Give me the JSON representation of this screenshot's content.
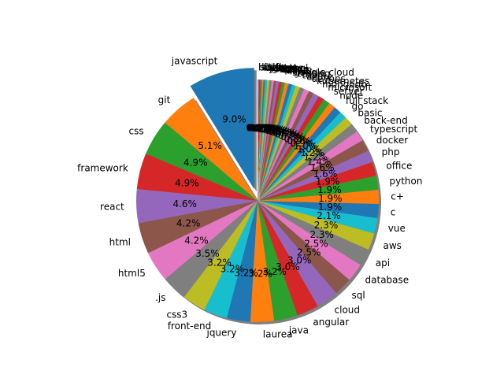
{
  "chart_data": {
    "type": "pie",
    "title": "",
    "start_angle_deg": 90,
    "counterclock": true,
    "shadow": true,
    "explode": {
      "index": 0,
      "amount": 0.1
    },
    "slices": [
      {
        "label": "javascript",
        "value": 9.0,
        "pct": "9.0%"
      },
      {
        "label": "git",
        "value": 5.1,
        "pct": "5.1%"
      },
      {
        "label": "css",
        "value": 4.9,
        "pct": "4.9%"
      },
      {
        "label": "framework",
        "value": 4.9,
        "pct": "4.9%"
      },
      {
        "label": "react",
        "value": 4.6,
        "pct": "4.6%"
      },
      {
        "label": "html",
        "value": 4.2,
        "pct": "4.2%"
      },
      {
        "label": "html5",
        "value": 4.2,
        "pct": "4.2%"
      },
      {
        "label": ".js",
        "value": 3.5,
        "pct": "3.5%"
      },
      {
        "label": "css3",
        "value": 3.2,
        "pct": "3.2%"
      },
      {
        "label": "front-end",
        "value": 3.2,
        "pct": "3.2%"
      },
      {
        "label": "jquery",
        "value": 3.2,
        "pct": "3.2%"
      },
      {
        "label": "laurea",
        "value": 3.2,
        "pct": "3.2%"
      },
      {
        "label": "java",
        "value": 3.2,
        "pct": "3.2%"
      },
      {
        "label": "angular",
        "value": 3.0,
        "pct": "3.0%"
      },
      {
        "label": "cloud",
        "value": 3.0,
        "pct": "3.0%"
      },
      {
        "label": "sql",
        "value": 2.5,
        "pct": "2.5%"
      },
      {
        "label": "database",
        "value": 2.5,
        "pct": "2.5%"
      },
      {
        "label": "api",
        "value": 2.3,
        "pct": "2.3%"
      },
      {
        "label": "aws",
        "value": 2.3,
        "pct": "2.3%"
      },
      {
        "label": "vue",
        "value": 2.1,
        "pct": "2.1%"
      },
      {
        "label": "c",
        "value": 1.9,
        "pct": "1.9%"
      },
      {
        "label": "c+",
        "value": 1.9,
        "pct": "1.9%"
      },
      {
        "label": "python",
        "value": 1.9,
        "pct": "1.9%"
      },
      {
        "label": "office",
        "value": 1.9,
        "pct": "1.9%"
      },
      {
        "label": "php",
        "value": 1.6,
        "pct": "1.6%"
      },
      {
        "label": "docker",
        "value": 1.6,
        "pct": "1.6%"
      },
      {
        "label": "typescript",
        "value": 1.4,
        "pct": "1.4%"
      },
      {
        "label": "back-end",
        "value": 1.2,
        "pct": "1.2%"
      },
      {
        "label": "basic",
        "value": 1.2,
        "pct": "1.2%"
      },
      {
        "label": "go",
        "value": 1.0,
        "pct": "1.0%"
      },
      {
        "label": "full stack",
        "value": 1.0,
        "pct": "1.0%"
      },
      {
        "label": "node",
        "value": 0.9,
        "pct": "0.9%"
      },
      {
        "label": "server",
        "value": 0.9,
        "pct": "0.9%"
      },
      {
        "label": "microsoft",
        "value": 0.8,
        "pct": "0.8%"
      },
      {
        "label": "mongodb",
        "value": 0.8,
        "pct": "0.8%"
      },
      {
        "label": "kubernetes",
        "value": 0.7,
        "pct": "0.7%"
      },
      {
        "label": "devops",
        "value": 0.7,
        "pct": "0.7%"
      },
      {
        "label": "azure",
        "value": 0.6,
        "pct": "0.6%"
      },
      {
        "label": "team",
        "value": 0.6,
        "pct": "0.6%"
      },
      {
        "label": "testing",
        "value": 0.5,
        "pct": "0.5%"
      },
      {
        "label": "google cloud",
        "value": 0.5,
        "pct": "0.5%"
      },
      {
        "label": "linux",
        "value": 0.5,
        "pct": "0.5%"
      },
      {
        "label": "agile",
        "value": 0.4,
        "pct": "0.4%"
      },
      {
        "label": "scrum",
        "value": 0.4,
        "pct": "0.4%"
      },
      {
        "label": "spring",
        "value": 0.4,
        "pct": "0.4%"
      },
      {
        "label": "redux",
        "value": 0.3,
        "pct": "0.3%"
      },
      {
        "label": "sass",
        "value": 0.3,
        "pct": "0.3%"
      },
      {
        "label": "graphql",
        "value": 0.3,
        "pct": "0.3%"
      },
      {
        "label": "jenkins",
        "value": 0.3,
        "pct": "0.3%"
      },
      {
        "label": "rest",
        "value": 0.3,
        "pct": "0.3%"
      },
      {
        "label": "django",
        "value": 0.2,
        "pct": "0.2%"
      },
      {
        "label": "flutter",
        "value": 0.2,
        "pct": "0.2%"
      },
      {
        "label": "kotlin",
        "value": 0.2,
        "pct": "0.2%"
      },
      {
        "label": "swift",
        "value": 0.2,
        "pct": "0.2%"
      },
      {
        "label": "bi",
        "value": 0.2,
        "pct": "0.2%"
      }
    ],
    "colors": [
      "#1f77b4",
      "#ff7f0e",
      "#2ca02c",
      "#d62728",
      "#9467bd",
      "#8c564b",
      "#e377c2",
      "#7f7f7f",
      "#bcbd22",
      "#17becf"
    ]
  }
}
